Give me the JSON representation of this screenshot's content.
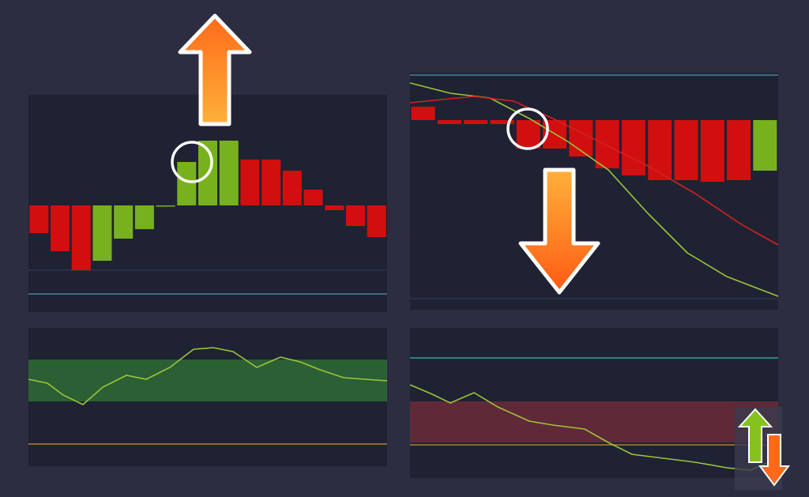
{
  "chart_data": [
    {
      "type": "bar",
      "ylim": [
        -135,
        140
      ],
      "values": [
        -35,
        -58,
        -82,
        -70,
        -42,
        -30,
        -1,
        55,
        82,
        82,
        58,
        58,
        44,
        20,
        -6,
        -26,
        -40
      ],
      "colors": [
        "#d10f0f",
        "#d10f0f",
        "#d10f0f",
        "#77b21e",
        "#77b21e",
        "#77b21e",
        "#77b21e",
        "#77b21e",
        "#77b21e",
        "#77b21e",
        "#d10f0f",
        "#d10f0f",
        "#d10f0f",
        "#d10f0f",
        "#d10f0f",
        "#d10f0f",
        "#d10f0f"
      ],
      "levels": [
        {
          "value": -82,
          "color": "#2a3044"
        },
        {
          "value": -112,
          "color": "#3d6a86"
        }
      ]
    },
    {
      "type": "bar",
      "ylim": [
        -240,
        60
      ],
      "values": [
        17,
        -5,
        -5,
        -5,
        -36,
        -36,
        -46,
        -61,
        -70,
        -76,
        -76,
        -78,
        -76,
        -64
      ],
      "colors": [
        "#d10f0f",
        "#d10f0f",
        "#d10f0f",
        "#d10f0f",
        "#d10f0f",
        "#d10f0f",
        "#d10f0f",
        "#d10f0f",
        "#d10f0f",
        "#d10f0f",
        "#d10f0f",
        "#d10f0f",
        "#d10f0f",
        "#77b21e"
      ],
      "xlim": [
        0,
        466
      ],
      "series": [
        {
          "color": "#9fc43a",
          "x": [
            0,
            51,
            101,
            151,
            201,
            251,
            301,
            351,
            401,
            466
          ],
          "values": [
            47,
            34,
            28,
            2,
            -28,
            -63,
            -118,
            -168,
            -198,
            -223
          ]
        },
        {
          "color": "#d42020",
          "x": [
            0,
            81,
            131,
            181,
            241,
            301,
            361,
            421,
            466
          ],
          "values": [
            22,
            30,
            24,
            2,
            -28,
            -58,
            -93,
            -133,
            -158
          ]
        }
      ],
      "levels": [
        {
          "value": 57,
          "color": "#3d6a86"
        },
        {
          "value": -226,
          "color": "#2a3044"
        }
      ]
    },
    {
      "type": "line",
      "ylim": [
        0,
        175
      ],
      "xlim": [
        0,
        454
      ],
      "bands": [
        {
          "from": 82,
          "to": 135,
          "color": "#2e6b35"
        }
      ],
      "levels": [
        {
          "value": 28,
          "color": "#8a6a2a"
        }
      ],
      "series": [
        {
          "color": "#9fc43a",
          "x": [
            0,
            24,
            44,
            69,
            94,
            124,
            149,
            179,
            209,
            234,
            259,
            289,
            319,
            344,
            369,
            399,
            454
          ],
          "values": [
            110,
            105,
            90,
            78,
            100,
            115,
            110,
            125,
            148,
            150,
            145,
            125,
            138,
            132,
            122,
            112,
            108
          ]
        }
      ]
    },
    {
      "type": "line",
      "ylim": [
        0,
        190
      ],
      "xlim": [
        0,
        466
      ],
      "bands": [
        {
          "from": 45,
          "to": 97,
          "color": "#6b2a38"
        }
      ],
      "levels": [
        {
          "value": 152,
          "color": "#2f7f86"
        },
        {
          "value": 42,
          "color": "#8a6a2a"
        }
      ],
      "series": [
        {
          "color": "#9fc43a",
          "x": [
            0,
            26,
            51,
            81,
            111,
            151,
            181,
            221,
            251,
            281,
            321,
            361,
            401,
            431,
            466
          ],
          "values": [
            118,
            107,
            95,
            108,
            90,
            72,
            67,
            62,
            45,
            30,
            25,
            20,
            13,
            10,
            25
          ]
        }
      ]
    }
  ]
}
